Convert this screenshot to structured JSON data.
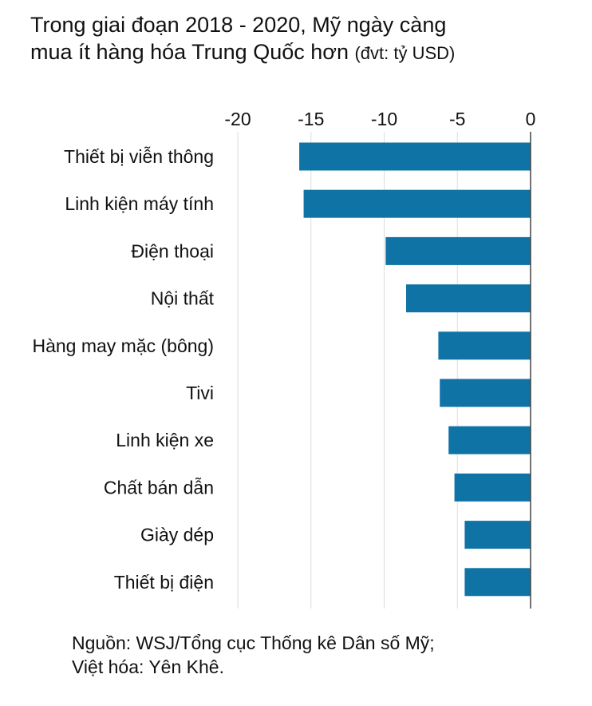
{
  "title_line1": "Trong giai đoạn 2018 - 2020, Mỹ ngày càng",
  "title_line2": "mua ít hàng hóa Trung Quốc hơn",
  "title_unit": "(đvt: tỷ USD)",
  "source_line1": "Nguồn: WSJ/Tổng cục Thống kê Dân số Mỹ;",
  "source_line2": "Việt hóa: Yên Khê.",
  "colors": {
    "bar": "#0f73a6",
    "grid": "#dddddd",
    "zero_line": "#444444"
  },
  "chart_data": {
    "type": "bar",
    "orientation": "horizontal",
    "title": "Trong giai đoạn 2018 - 2020, Mỹ ngày càng mua ít hàng hóa Trung Quốc hơn (đvt: tỷ USD)",
    "xlabel": "",
    "ylabel": "",
    "categories": [
      "Thiết bị viễn thông",
      "Linh kiện máy tính",
      "Điện thoại",
      "Nội thất",
      "Hàng may mặc (bông)",
      "Tivi",
      "Linh kiện xe",
      "Chất bán dẫn",
      "Giày dép",
      "Thiết bị điện"
    ],
    "values": [
      -15.8,
      -15.5,
      -9.9,
      -8.5,
      -6.3,
      -6.2,
      -5.6,
      -5.2,
      -4.5,
      -4.5
    ],
    "xlim": [
      -20,
      0
    ],
    "xticks": [
      "-20",
      "-15",
      "-10",
      "-5",
      "0"
    ],
    "xtick_values": [
      -20,
      -15,
      -10,
      -5,
      0
    ],
    "x_axis_position": "top",
    "grid": true,
    "legend": "none"
  }
}
